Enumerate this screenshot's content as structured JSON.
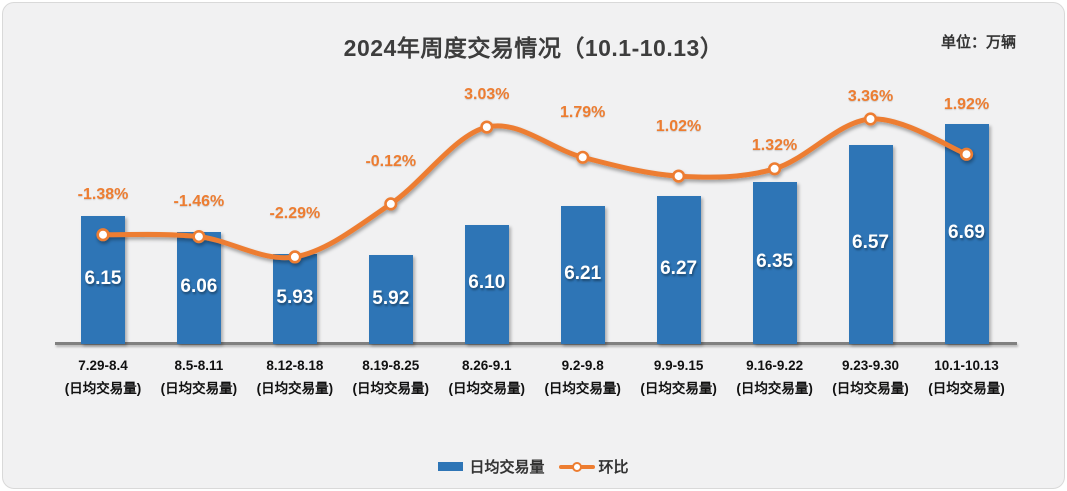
{
  "colors": {
    "bar": "#2E75B6",
    "line": "#ED7D31",
    "percent_label": "#ED7D31",
    "axis": "#808080",
    "panel_bg": "#F1F1F2",
    "title": "#3D3D3D",
    "bar_value_text": "#FFFFFF"
  },
  "chart_data": {
    "type": "bar+line combo",
    "title": "2024年周度交易情况（10.1-10.13）",
    "unit": "单位：万辆",
    "categories": [
      "7.29-8.4",
      "8.5-8.11",
      "8.12-8.18",
      "8.19-8.25",
      "8.26-9.1",
      "9.2-9.8",
      "9.9-9.15",
      "9.16-9.22",
      "9.23-9.30",
      "10.1-10.13"
    ],
    "category_sublabel": "(日均交易量)",
    "series": [
      {
        "name": "日均交易量",
        "type": "bar",
        "values": [
          6.15,
          6.06,
          5.93,
          5.92,
          6.1,
          6.21,
          6.27,
          6.35,
          6.57,
          6.69
        ],
        "labels": [
          "6.15",
          "6.06",
          "5.93",
          "5.92",
          "6.10",
          "6.21",
          "6.27",
          "6.35",
          "6.57",
          "6.69"
        ]
      },
      {
        "name": "环比",
        "type": "line",
        "values": [
          -1.38,
          -1.46,
          -2.29,
          -0.12,
          3.03,
          1.79,
          1.02,
          1.32,
          3.36,
          1.92
        ],
        "labels": [
          "-1.38%",
          "-1.46%",
          "-2.29%",
          "-0.12%",
          "3.03%",
          "1.79%",
          "1.02%",
          "1.32%",
          "3.36%",
          "1.92%"
        ]
      }
    ],
    "legend_position": "bottom",
    "grid": false,
    "y_axis_visible": false,
    "bar_axis_implied_min": 5.4
  }
}
